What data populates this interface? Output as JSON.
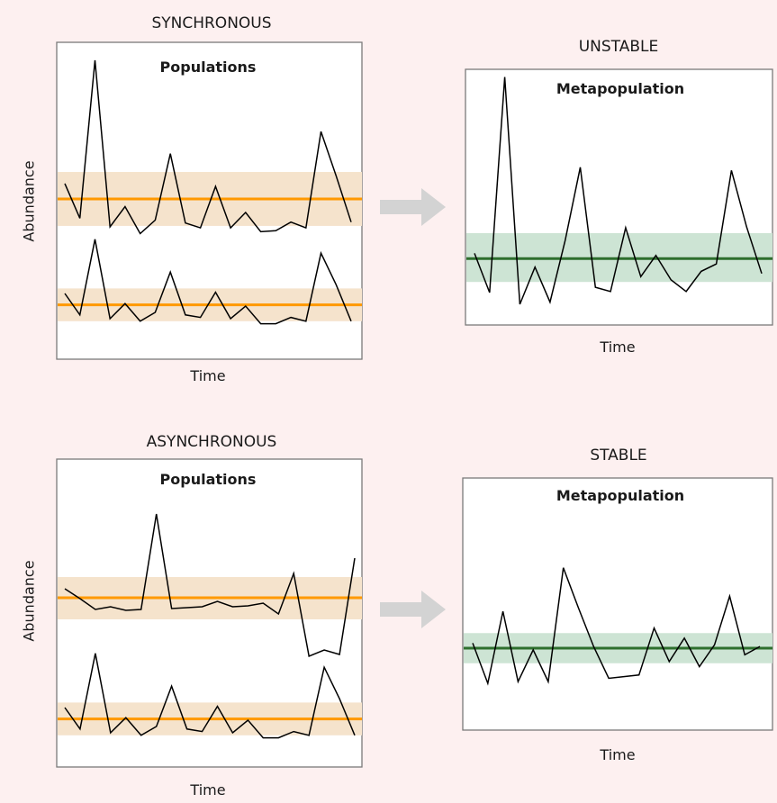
{
  "figure": {
    "sync_heading": "SYNCHRONOUS",
    "async_heading": "ASYNCHRONOUS",
    "unstable_heading": "UNSTABLE",
    "stable_heading": "STABLE",
    "ylabel": "Abundance",
    "xlabel": "Time",
    "populations_title": "Populations",
    "metapopulation_title": "Metapopulation"
  },
  "colors": {
    "page_background": "#fdf0f0",
    "panel_background": "#ffffff",
    "panel_border": "#7a7a7a",
    "population_band": "#f5e3cc",
    "population_mean": "#ff9900",
    "metapopulation_band": "#cde4d4",
    "metapopulation_mean": "#2e6f2e",
    "series_line": "#000000",
    "arrow": "#d3d3d3"
  },
  "chart_data": [
    {
      "type": "line",
      "panel": "synchronous-populations",
      "series": [
        {
          "values": [
            5.2,
            1.6,
            18.0,
            0.7,
            2.8,
            0.0,
            1.4,
            8.3,
            1.1,
            0.6,
            4.9,
            0.6,
            2.2,
            0.2,
            0.3,
            1.2,
            0.6,
            10.6,
            6.0,
            1.2
          ],
          "mean": 3.6,
          "band": [
            0.8,
            6.4
          ]
        },
        {
          "values": [
            2.5,
            0.8,
            6.8,
            0.5,
            1.7,
            0.3,
            1.0,
            4.2,
            0.8,
            0.6,
            2.6,
            0.5,
            1.5,
            0.1,
            0.1,
            0.6,
            0.3,
            5.7,
            3.2,
            0.3
          ],
          "mean": 1.6,
          "band": [
            0.3,
            2.9
          ]
        }
      ]
    },
    {
      "type": "line",
      "panel": "unstable-metapopulation",
      "series": [
        {
          "values": [
            4.8,
            1.1,
            21.4,
            0.0,
            3.5,
            0.2,
            6.0,
            12.9,
            1.6,
            1.2,
            7.2,
            2.6,
            4.6,
            2.3,
            1.2,
            3.1,
            3.8,
            12.6,
            7.3,
            2.9
          ],
          "mean": 4.3,
          "band": [
            2.1,
            6.7
          ]
        }
      ]
    },
    {
      "type": "line",
      "panel": "asynchronous-populations",
      "series": [
        {
          "values": [
            4.6,
            3.5,
            2.3,
            2.6,
            2.2,
            2.3,
            12.9,
            2.4,
            2.5,
            2.6,
            3.2,
            2.6,
            2.7,
            3.0,
            1.8,
            6.3,
            -2.9,
            -2.2,
            -2.7,
            8.0
          ],
          "mean": 3.6,
          "band": [
            1.2,
            5.9
          ]
        },
        {
          "values": [
            2.5,
            0.8,
            6.8,
            0.5,
            1.7,
            0.3,
            1.0,
            4.2,
            0.8,
            0.6,
            2.6,
            0.5,
            1.5,
            0.1,
            0.1,
            0.6,
            0.3,
            5.7,
            3.2,
            0.3
          ],
          "mean": 1.6,
          "band": [
            0.3,
            2.9
          ]
        }
      ]
    },
    {
      "type": "line",
      "panel": "stable-metapopulation",
      "series": [
        {
          "values": [
            5.3,
            2.9,
            7.2,
            3.0,
            4.9,
            3.0,
            9.8,
            7.4,
            5.1,
            3.2,
            3.3,
            3.4,
            6.2,
            4.2,
            5.6,
            3.9,
            5.2,
            8.1,
            4.6,
            5.1
          ],
          "mean": 5.0,
          "band": [
            4.1,
            5.9
          ]
        }
      ]
    }
  ]
}
